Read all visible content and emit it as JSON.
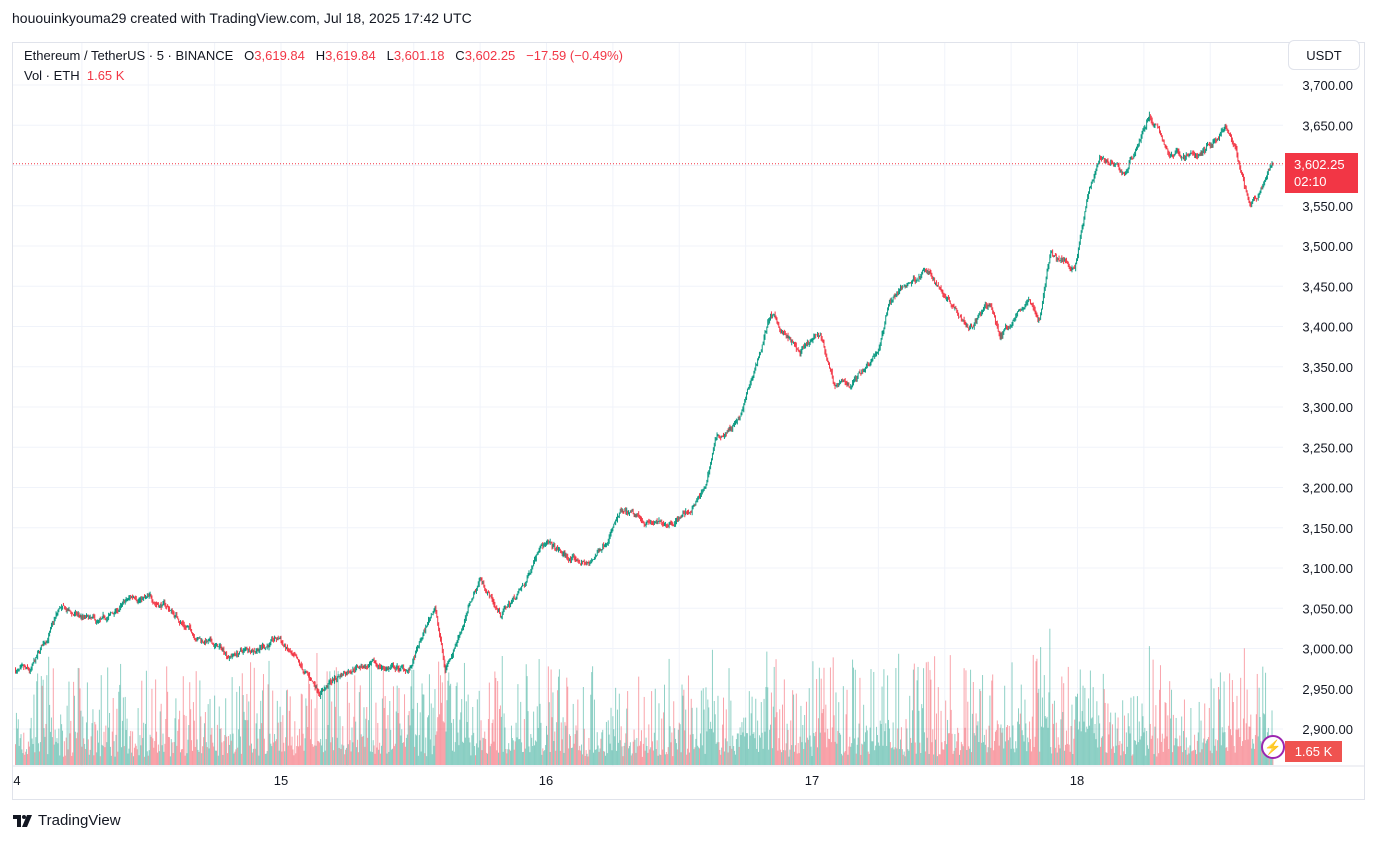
{
  "header": {
    "credit": "hououinkyouma29 created with TradingView.com, Jul 18, 2025 17:42 UTC"
  },
  "legend": {
    "symbol": "Ethereum / TetherUS · 5 · BINANCE",
    "o_label": "O",
    "o": "3,619.84",
    "h_label": "H",
    "h": "3,619.84",
    "l_label": "L",
    "l": "3,601.18",
    "c_label": "C",
    "c": "3,602.25",
    "change": "−17.59 (−0.49%)",
    "vol_label": "Vol · ETH",
    "vol": "1.65 K"
  },
  "price_axis": {
    "currency": "USDT",
    "current_price": "3,602.25",
    "countdown": "02:10",
    "volume_tag": "1.65 K"
  },
  "brand": {
    "logo": "TV",
    "name": "TradingView"
  },
  "colors": {
    "up": "#089981",
    "down": "#f23645",
    "grid": "#f0f3fa",
    "border": "#e0e3eb"
  },
  "chart_data": {
    "type": "candlestick",
    "interval": "5m",
    "ylim": [
      2875,
      3715
    ],
    "y_ticks": [
      "3,700.00",
      "3,650.00",
      "3,600.00",
      "3,550.00",
      "3,500.00",
      "3,450.00",
      "3,400.00",
      "3,350.00",
      "3,300.00",
      "3,250.00",
      "3,200.00",
      "3,150.00",
      "3,100.00",
      "3,050.00",
      "3,000.00",
      "2,950.00",
      "2,900.00"
    ],
    "x_ticks": [
      "4",
      "15",
      "16",
      "17",
      "18"
    ],
    "grid": true,
    "price_path": [
      [
        "07-14 00:00",
        2973
      ],
      [
        "07-14 01:20",
        2967
      ],
      [
        "07-14 04:00",
        3048
      ],
      [
        "07-14 07:40",
        3029
      ],
      [
        "07-14 10:50",
        3066
      ],
      [
        "07-14 13:30",
        3054
      ],
      [
        "07-14 16:15",
        3017
      ],
      [
        "07-14 19:25",
        2992
      ],
      [
        "07-14 23:55",
        3011
      ],
      [
        "07-15 01:45",
        2973
      ],
      [
        "07-15 03:30",
        2948
      ],
      [
        "07-15 06:40",
        2980
      ],
      [
        "07-15 11:40",
        2973
      ],
      [
        "07-15 13:55",
        3054
      ],
      [
        "07-15 14:50",
        2973
      ],
      [
        "07-15 18:00",
        3088
      ],
      [
        "07-15 19:50",
        3042
      ],
      [
        "07-15 22:05",
        3079
      ],
      [
        "07-15 23:25",
        3135
      ],
      [
        "07-16 02:10",
        3110
      ],
      [
        "07-16 03:55",
        3104
      ],
      [
        "07-16 06:40",
        3166
      ],
      [
        "07-16 10:20",
        3153
      ],
      [
        "07-16 13:00",
        3172
      ],
      [
        "07-16 14:20",
        3197
      ],
      [
        "07-16 15:15",
        3259
      ],
      [
        "07-16 17:30",
        3284
      ],
      [
        "07-16 20:15",
        3414
      ],
      [
        "07-16 22:55",
        3365
      ],
      [
        "07-17 00:45",
        3389
      ],
      [
        "07-17 02:05",
        3327
      ],
      [
        "07-17 03:25",
        3327
      ],
      [
        "07-17 06:10",
        3377
      ],
      [
        "07-17 07:00",
        3433
      ],
      [
        "07-17 10:10",
        3470
      ],
      [
        "07-17 12:55",
        3427
      ],
      [
        "07-17 14:15",
        3402
      ],
      [
        "07-17 16:05",
        3427
      ],
      [
        "07-17 17:00",
        3389
      ],
      [
        "07-17 19:40",
        3433
      ],
      [
        "07-17 20:35",
        3408
      ],
      [
        "07-17 21:30",
        3489
      ],
      [
        "07-17 23:45",
        3476
      ],
      [
        "07-18 01:05",
        3570
      ],
      [
        "07-18 02:00",
        3613
      ],
      [
        "07-18 04:15",
        3588
      ],
      [
        "07-18 06:30",
        3663
      ],
      [
        "07-18 08:20",
        3613
      ],
      [
        "07-18 11:05",
        3613
      ],
      [
        "07-18 13:20",
        3644
      ],
      [
        "07-18 14:15",
        3619
      ],
      [
        "07-18 15:35",
        3545
      ],
      [
        "07-18 16:55",
        3576
      ],
      [
        "07-18 17:40",
        3602.25
      ]
    ],
    "last_price": 3602.25
  }
}
